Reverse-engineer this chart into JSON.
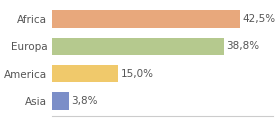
{
  "categories": [
    "Asia",
    "America",
    "Europa",
    "Africa"
  ],
  "values": [
    3.8,
    15.0,
    38.8,
    42.5
  ],
  "labels": [
    "3,8%",
    "15,0%",
    "38,8%",
    "42,5%"
  ],
  "bar_colors": [
    "#7b8ec8",
    "#f0c96b",
    "#b5c98e",
    "#e8a87c"
  ],
  "background_color": "#ffffff",
  "xlim": [
    0,
    50
  ],
  "label_fontsize": 7.5,
  "category_fontsize": 7.5
}
